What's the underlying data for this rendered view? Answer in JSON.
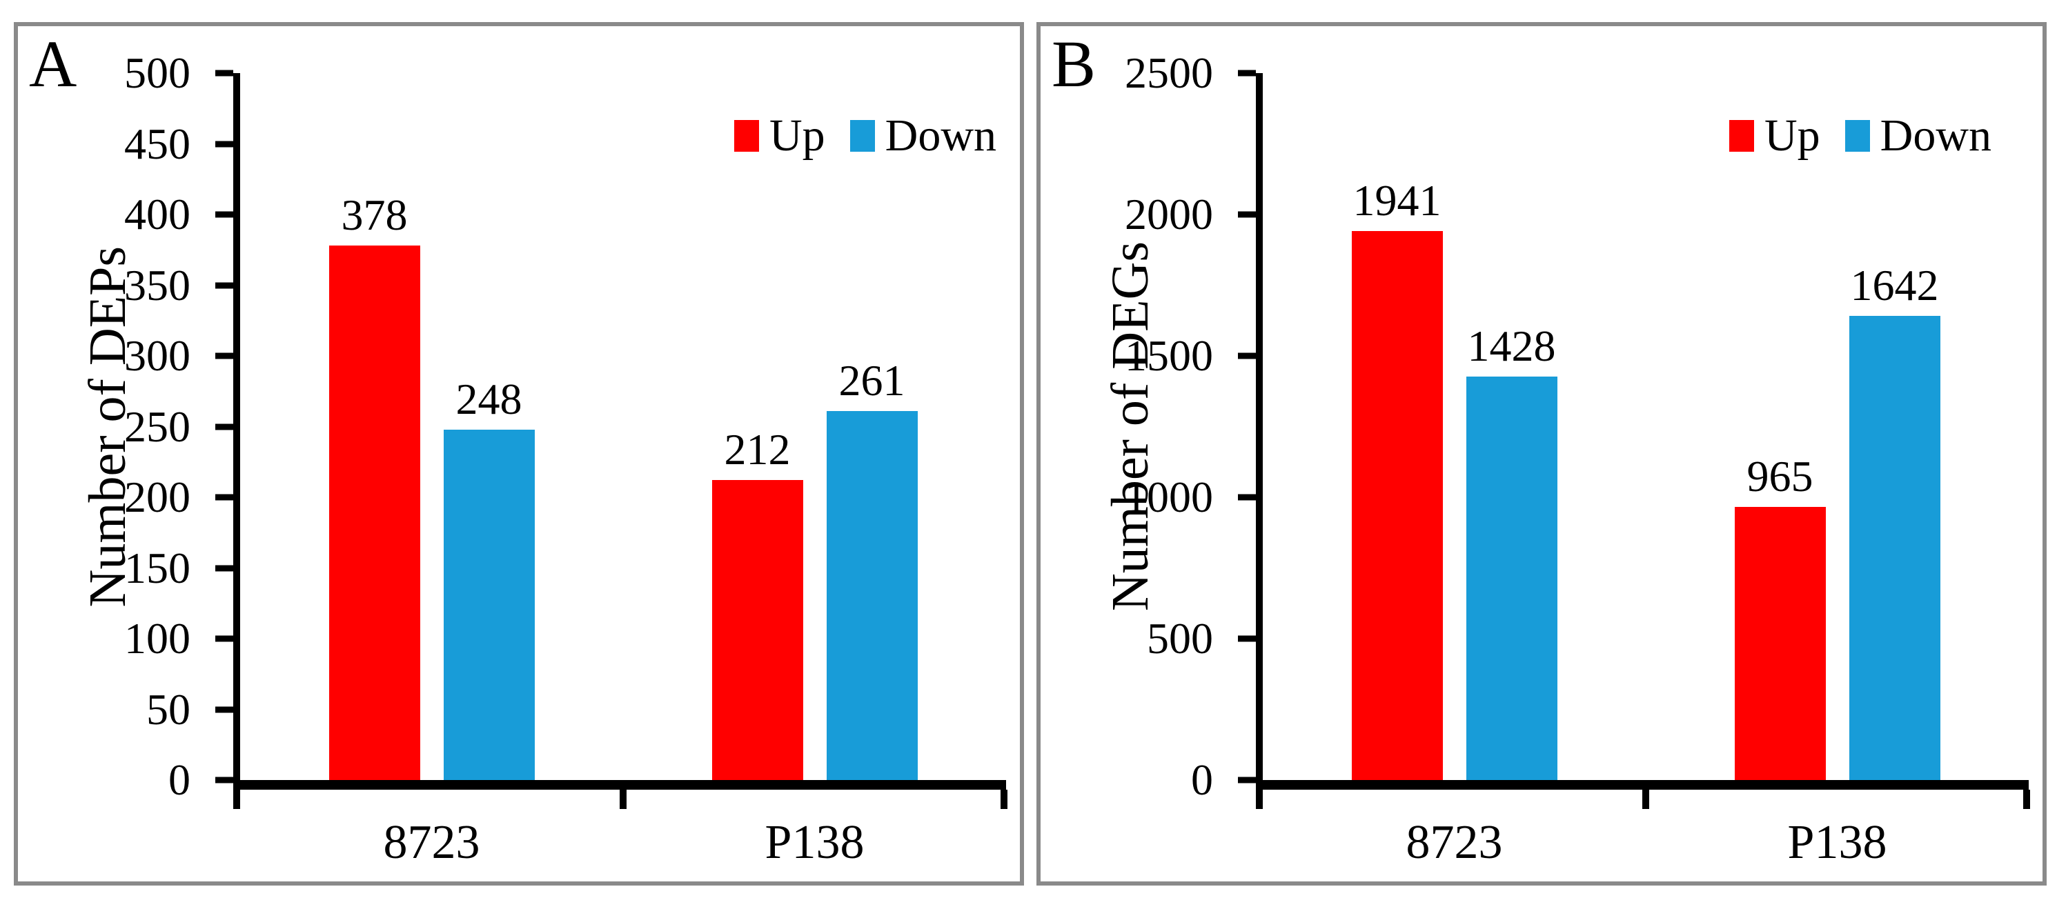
{
  "colors": {
    "up": "#ff0000",
    "down": "#189cd8",
    "axis": "#000000",
    "panel_border": "#8a8a8a",
    "text": "#000000",
    "background": "#ffffff"
  },
  "chart_data": [
    {
      "type": "bar",
      "panel_label": "A",
      "title": "",
      "xlabel": "",
      "ylabel": "Number of DEPs",
      "ylim": [
        0,
        500
      ],
      "yticks": [
        0,
        50,
        100,
        150,
        200,
        250,
        300,
        350,
        400,
        450,
        500
      ],
      "categories": [
        "8723",
        "P138"
      ],
      "series": [
        {
          "name": "Up",
          "color": "#ff0000",
          "values": [
            378,
            212
          ]
        },
        {
          "name": "Down",
          "color": "#189cd8",
          "values": [
            248,
            261
          ]
        }
      ],
      "bar_value_labels": [
        [
          378,
          212
        ],
        [
          248,
          261
        ]
      ],
      "legend_position": "top-right",
      "grid": false
    },
    {
      "type": "bar",
      "panel_label": "B",
      "title": "",
      "xlabel": "",
      "ylabel": "Number of DEGs",
      "ylim": [
        0,
        2500
      ],
      "yticks": [
        0,
        500,
        1000,
        1500,
        2000,
        2500
      ],
      "categories": [
        "8723",
        "P138"
      ],
      "series": [
        {
          "name": "Up",
          "color": "#ff0000",
          "values": [
            1941,
            965
          ]
        },
        {
          "name": "Down",
          "color": "#189cd8",
          "values": [
            1428,
            1642
          ]
        }
      ],
      "bar_value_labels": [
        [
          1941,
          965
        ],
        [
          1428,
          1642
        ]
      ],
      "legend_position": "top-right",
      "grid": false
    }
  ]
}
